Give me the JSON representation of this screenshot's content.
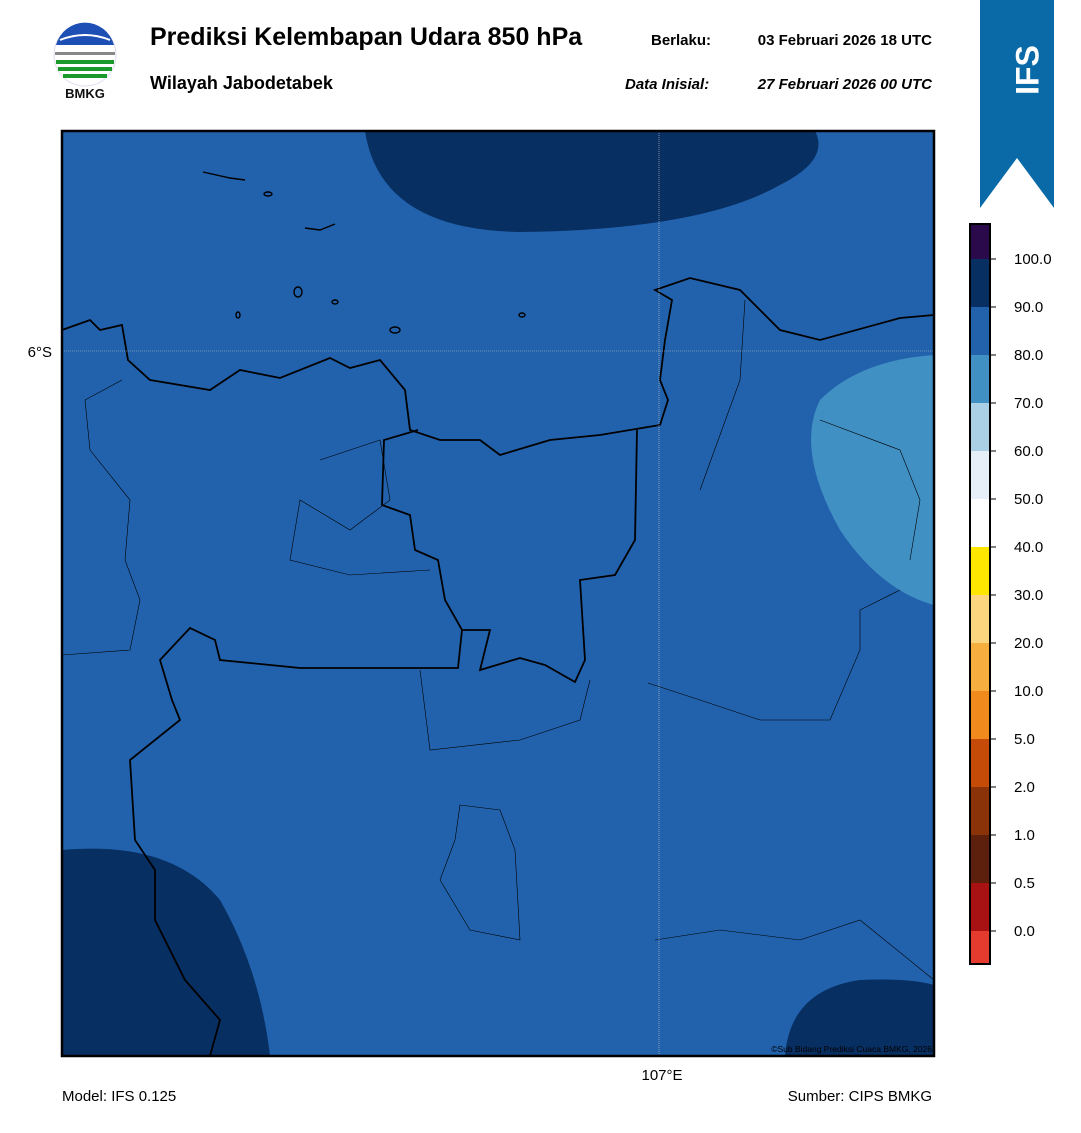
{
  "header": {
    "title": "Prediksi Kelembapan Udara 850 hPa",
    "region": "Wilayah Jabodetabek",
    "valid_label": "Berlaku:",
    "valid_time": "03 Februari 2026 18 UTC",
    "init_label": "Data Inisial:",
    "init_time": "27 Februari 2026 00 UTC",
    "logo_text": "BMKG",
    "badge": "IFS"
  },
  "map": {
    "lat_label": "6°S",
    "lon_label": "107°E",
    "copyright": "©Sub Bidang Prediksi Cuaca BMKG, 2026"
  },
  "colorbar": {
    "labels": [
      "0.0",
      "0.5",
      "1.0",
      "2.0",
      "5.0",
      "10.0",
      "20.0",
      "30.0",
      "40.0",
      "50.0",
      "60.0",
      "70.0",
      "80.0",
      "90.0",
      "100.0"
    ],
    "colors": [
      "#e53a2e",
      "#a81212",
      "#5c200c",
      "#8a3208",
      "#c44c08",
      "#f08a1c",
      "#f6ae3e",
      "#fcd57e",
      "#ffe600",
      "#ffffff",
      "#e6eef7",
      "#a9d0e4",
      "#4190c4",
      "#2262ad",
      "#082f62",
      "#2a0a4a"
    ]
  },
  "footer": {
    "model": "Model: IFS 0.125",
    "source": "Sumber: CIPS BMKG"
  }
}
